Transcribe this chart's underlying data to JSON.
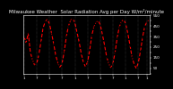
{
  "title": "Milwaukee Weather  Solar Radiation Avg per Day W/m²/minute",
  "bg_color": "#000000",
  "line_color": "#ff0000",
  "line_style": "--",
  "line_width": 0.8,
  "marker": ".",
  "marker_size": 1.5,
  "marker_color": "#000000",
  "ylim": [
    0,
    500
  ],
  "ytick_labels": [
    "",
    "50",
    "",
    "150",
    "",
    "250",
    "",
    "350",
    "",
    "450",
    "",
    "550"
  ],
  "ytick_values": [
    0,
    50,
    100,
    150,
    200,
    250,
    300,
    350,
    400,
    450,
    500,
    550
  ],
  "grid_color": "#aaaaaa",
  "grid_style": ":",
  "values": [
    350,
    290,
    380,
    200,
    130,
    80,
    95,
    180,
    300,
    430,
    490,
    510,
    470,
    380,
    280,
    170,
    100,
    60,
    100,
    210,
    350,
    450,
    500,
    520,
    480,
    390,
    300,
    190,
    110,
    65,
    110,
    220,
    360,
    440,
    480,
    500,
    460,
    370,
    270,
    160,
    95,
    55,
    100,
    200,
    340,
    440,
    490,
    510,
    470,
    380,
    270,
    155,
    90,
    50,
    105,
    215,
    345,
    445,
    485,
    505
  ],
  "x_tick_positions": [
    0,
    6,
    12,
    18,
    24,
    30,
    36,
    42,
    48,
    54,
    58
  ],
  "x_tick_labels": [
    "1",
    "7",
    "1",
    "7",
    "1",
    "7",
    "1",
    "7",
    "1",
    "7",
    "1"
  ],
  "font_color": "#ffffff",
  "title_fontsize": 4.0,
  "tick_fontsize": 3.0
}
